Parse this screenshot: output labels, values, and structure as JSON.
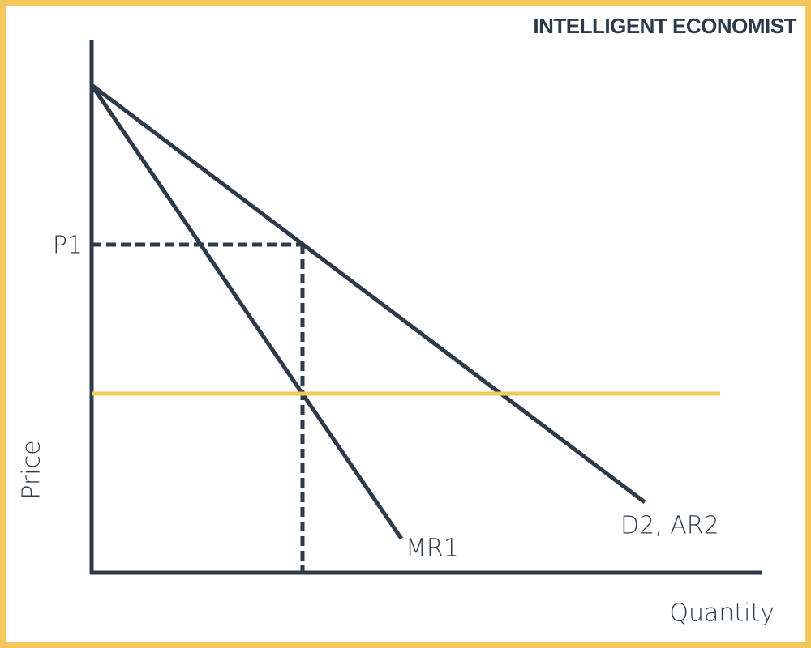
{
  "brand": "INTELLIGENT ECONOMIST",
  "axes": {
    "y_label": "Price",
    "x_label": "Quantity"
  },
  "labels": {
    "price_level": "P1",
    "marginal_revenue": "MR1",
    "demand": "D2, AR2"
  }
}
